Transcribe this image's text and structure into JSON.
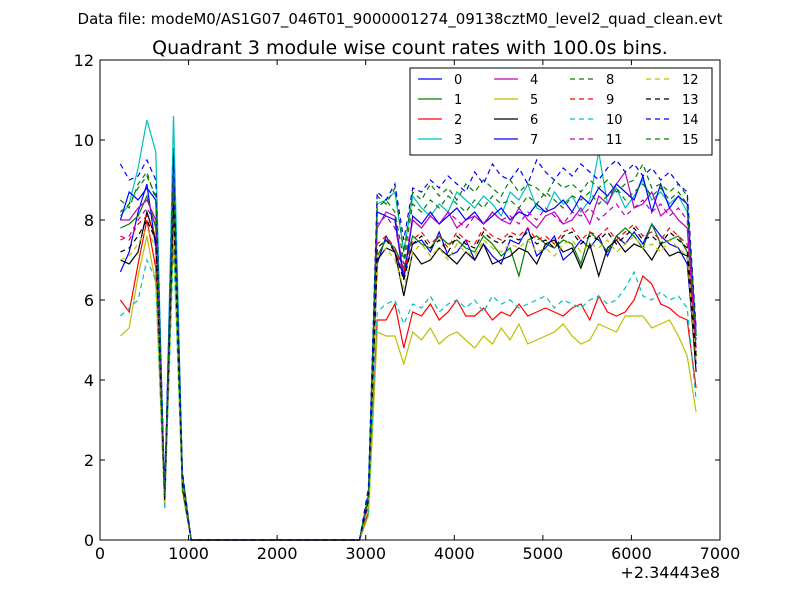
{
  "chart_data": {
    "type": "line",
    "supertitle": "Data file: modeM0/AS1G07_046T01_9000001274_09138cztM0_level2_quad_clean.evt",
    "title": "Quadrant 3 module wise count rates with 100.0s bins.",
    "xlabel": "",
    "ylabel": "",
    "offset_label": "+2.34443e8",
    "xlim": [
      0,
      7000
    ],
    "ylim": [
      0,
      12
    ],
    "xticks": [
      0,
      1000,
      2000,
      3000,
      4000,
      5000,
      6000,
      7000
    ],
    "yticks": [
      0,
      2,
      4,
      6,
      8,
      10,
      12
    ],
    "grid": false,
    "legend_position": "top-right",
    "x": [
      230,
      330,
      430,
      530,
      630,
      730,
      830,
      930,
      1030,
      2930,
      3030,
      3130,
      3230,
      3330,
      3430,
      3530,
      3630,
      3730,
      3830,
      3930,
      4030,
      4130,
      4230,
      4330,
      4430,
      4530,
      4630,
      4730,
      4830,
      4930,
      5030,
      5130,
      5230,
      5330,
      5430,
      5530,
      5630,
      5730,
      5830,
      5930,
      6030,
      6130,
      6230,
      6330,
      6430,
      6530,
      6630,
      6730
    ],
    "series": [
      {
        "name": "0",
        "color": "#0000ff",
        "dash": "",
        "values": [
          6.7,
          7.2,
          8.2,
          8.9,
          7.3,
          1.1,
          9.8,
          1.4,
          0,
          0,
          0.9,
          6.9,
          7.6,
          7.2,
          6.6,
          7.4,
          7.5,
          7.2,
          7.7,
          7.1,
          7.2,
          7.5,
          7.0,
          7.4,
          7.1,
          6.9,
          7.5,
          7.4,
          7.8,
          7.1,
          7.3,
          7.6,
          7.0,
          7.2,
          7.5,
          7.3,
          7.6,
          7.1,
          7.6,
          7.4,
          7.7,
          7.4,
          7.9,
          7.6,
          7.4,
          7.3,
          6.9,
          4.4
        ]
      },
      {
        "name": "1",
        "color": "#008000",
        "dash": "",
        "values": [
          7.8,
          7.9,
          8.1,
          8.6,
          7.8,
          1.0,
          9.0,
          1.5,
          0,
          0,
          0.9,
          7.1,
          7.5,
          7.3,
          6.8,
          7.6,
          7.4,
          7.3,
          7.6,
          7.4,
          7.5,
          7.3,
          7.2,
          7.6,
          7.4,
          7.1,
          7.3,
          6.6,
          7.5,
          7.6,
          7.4,
          7.3,
          7.5,
          7.4,
          6.9,
          7.7,
          7.5,
          7.2,
          7.6,
          7.8,
          7.6,
          7.3,
          7.9,
          7.4,
          7.5,
          7.6,
          7.2,
          4.6
        ]
      },
      {
        "name": "2",
        "color": "#ff0000",
        "dash": "",
        "values": [
          6.0,
          5.7,
          6.9,
          8.0,
          6.8,
          0.9,
          8.2,
          1.3,
          0,
          0,
          0.7,
          5.5,
          5.5,
          5.9,
          4.8,
          5.7,
          5.6,
          5.9,
          5.5,
          5.7,
          6.0,
          5.6,
          5.6,
          5.8,
          5.5,
          5.7,
          5.6,
          5.9,
          5.6,
          5.7,
          5.8,
          5.7,
          5.6,
          5.8,
          5.9,
          5.5,
          6.1,
          5.7,
          5.6,
          5.7,
          6.0,
          6.6,
          6.4,
          5.9,
          5.8,
          5.6,
          5.5,
          3.8
        ]
      },
      {
        "name": "3",
        "color": "#00bfbf",
        "dash": "",
        "values": [
          8.1,
          8.4,
          9.3,
          10.5,
          9.7,
          0.8,
          10.6,
          1.6,
          0,
          0,
          1.1,
          8.4,
          8.5,
          8.7,
          7.2,
          8.6,
          8.3,
          8.1,
          8.4,
          8.2,
          8.7,
          8.5,
          8.3,
          8.6,
          8.4,
          8.1,
          8.7,
          8.5,
          8.9,
          8.3,
          8.2,
          8.7,
          8.4,
          8.6,
          8.2,
          8.5,
          9.7,
          8.4,
          8.8,
          8.3,
          8.6,
          9.0,
          8.5,
          8.7,
          8.4,
          8.6,
          8.2,
          5.2
        ]
      },
      {
        "name": "4",
        "color": "#bf00bf",
        "dash": "",
        "values": [
          8.0,
          8.0,
          8.3,
          8.5,
          8.0,
          1.1,
          9.2,
          1.5,
          0,
          0,
          1.0,
          7.8,
          8.2,
          8.1,
          6.6,
          8.0,
          7.8,
          8.1,
          7.9,
          8.2,
          7.8,
          8.0,
          8.1,
          7.9,
          8.2,
          8.0,
          7.9,
          8.3,
          8.0,
          7.8,
          8.1,
          8.2,
          7.9,
          8.0,
          8.3,
          7.9,
          8.6,
          8.4,
          8.9,
          9.2,
          8.3,
          8.4,
          8.7,
          8.1,
          8.3,
          8.0,
          7.8,
          4.8
        ]
      },
      {
        "name": "5",
        "color": "#bfbf00",
        "dash": "",
        "values": [
          5.1,
          5.3,
          6.6,
          7.6,
          6.4,
          0.9,
          7.6,
          1.2,
          0,
          0,
          0.6,
          5.2,
          5.1,
          5.1,
          4.4,
          5.2,
          5.0,
          5.3,
          4.9,
          5.1,
          5.2,
          5.0,
          4.8,
          5.1,
          4.9,
          5.3,
          5.0,
          5.4,
          4.9,
          5.0,
          5.1,
          5.2,
          5.4,
          5.1,
          4.9,
          5.0,
          5.4,
          5.3,
          5.2,
          5.6,
          5.6,
          5.6,
          5.3,
          5.4,
          5.5,
          5.1,
          4.6,
          3.2
        ]
      },
      {
        "name": "6",
        "color": "#000000",
        "dash": "",
        "values": [
          7.0,
          6.9,
          7.2,
          8.2,
          7.5,
          1.0,
          8.6,
          1.3,
          0,
          0,
          1.0,
          7.0,
          7.3,
          7.2,
          6.1,
          7.2,
          6.9,
          7.0,
          7.3,
          7.1,
          6.9,
          7.2,
          7.0,
          7.4,
          6.9,
          7.0,
          7.1,
          7.3,
          7.2,
          6.9,
          7.4,
          7.5,
          7.2,
          7.3,
          6.8,
          7.4,
          6.6,
          7.3,
          7.5,
          7.2,
          7.4,
          7.3,
          7.0,
          7.4,
          7.1,
          7.2,
          7.1,
          4.2
        ]
      },
      {
        "name": "7",
        "color": "#0000ff",
        "dash": "",
        "values": [
          8.0,
          8.7,
          8.5,
          8.8,
          8.5,
          1.2,
          9.1,
          1.6,
          0,
          0,
          1.1,
          8.2,
          8.1,
          8.0,
          6.5,
          8.1,
          7.9,
          8.2,
          7.9,
          8.1,
          8.3,
          8.0,
          8.2,
          7.9,
          8.1,
          8.3,
          8.0,
          8.2,
          8.1,
          8.4,
          8.2,
          8.3,
          8.5,
          8.2,
          8.6,
          8.4,
          8.8,
          8.6,
          8.9,
          8.7,
          8.5,
          9.1,
          8.2,
          8.9,
          8.3,
          8.6,
          8.4,
          5.1
        ]
      },
      {
        "name": "8",
        "color": "#008000",
        "dash": "5,4",
        "values": [
          8.5,
          8.3,
          8.9,
          9.2,
          8.5,
          1.1,
          9.1,
          1.7,
          0,
          0,
          1.2,
          8.6,
          8.4,
          8.8,
          7.2,
          8.7,
          8.5,
          8.9,
          8.6,
          8.8,
          8.5,
          8.9,
          8.7,
          9.0,
          8.8,
          8.6,
          9.0,
          8.7,
          8.9,
          8.8,
          8.6,
          9.0,
          8.8,
          8.9,
          8.7,
          9.0,
          8.8,
          9.0,
          8.7,
          8.9,
          9.0,
          9.4,
          8.8,
          8.9,
          8.7,
          8.9,
          8.6,
          5.2
        ]
      },
      {
        "name": "9",
        "color": "#ff0000",
        "dash": "5,4",
        "values": [
          7.6,
          7.5,
          7.9,
          8.1,
          7.6,
          1.0,
          8.5,
          1.5,
          0,
          0,
          0.9,
          7.4,
          7.6,
          7.3,
          6.7,
          7.5,
          7.7,
          7.4,
          7.6,
          7.3,
          7.7,
          7.5,
          7.4,
          7.8,
          7.6,
          7.5,
          7.7,
          7.6,
          7.8,
          7.5,
          7.6,
          7.4,
          7.7,
          7.8,
          7.5,
          7.7,
          7.6,
          7.8,
          7.5,
          7.7,
          7.9,
          7.6,
          7.7,
          7.5,
          7.8,
          7.6,
          7.4,
          4.7
        ]
      },
      {
        "name": "10",
        "color": "#00bfbf",
        "dash": "5,4",
        "values": [
          5.6,
          5.8,
          6.0,
          7.0,
          6.5,
          0.8,
          7.4,
          1.3,
          0,
          0,
          0.7,
          5.7,
          5.9,
          6.0,
          5.4,
          5.9,
          5.8,
          6.1,
          5.7,
          5.9,
          6.0,
          5.8,
          6.0,
          5.7,
          6.1,
          5.9,
          6.0,
          5.8,
          5.9,
          6.0,
          6.1,
          5.8,
          6.0,
          5.9,
          5.8,
          6.0,
          6.1,
          5.9,
          6.0,
          6.3,
          6.7,
          6.1,
          6.0,
          6.2,
          6.0,
          6.1,
          5.8,
          3.5
        ]
      },
      {
        "name": "11",
        "color": "#bf00bf",
        "dash": "5,4",
        "values": [
          7.5,
          7.6,
          8.0,
          8.3,
          7.9,
          1.0,
          8.8,
          1.5,
          0,
          0,
          1.0,
          7.9,
          8.1,
          7.8,
          6.9,
          8.0,
          7.8,
          8.1,
          7.9,
          8.2,
          8.0,
          7.8,
          8.1,
          7.9,
          8.2,
          8.0,
          8.1,
          7.9,
          8.2,
          8.0,
          8.3,
          8.1,
          7.9,
          8.2,
          8.1,
          8.3,
          8.0,
          8.2,
          8.4,
          8.1,
          8.3,
          8.5,
          8.2,
          8.4,
          8.1,
          8.3,
          8.0,
          5.0
        ]
      },
      {
        "name": "12",
        "color": "#bfbf00",
        "dash": "5,4",
        "values": [
          7.0,
          7.1,
          7.4,
          7.8,
          7.3,
          0.9,
          8.1,
          1.4,
          0,
          0,
          0.9,
          7.1,
          7.3,
          7.0,
          6.3,
          7.2,
          7.4,
          7.1,
          7.3,
          7.0,
          7.4,
          7.2,
          7.1,
          7.5,
          7.3,
          7.2,
          7.4,
          7.3,
          7.5,
          7.2,
          7.3,
          7.1,
          7.4,
          7.5,
          7.2,
          7.4,
          7.3,
          7.5,
          7.2,
          7.4,
          7.6,
          7.3,
          7.4,
          7.2,
          7.5,
          7.3,
          7.1,
          4.5
        ]
      },
      {
        "name": "13",
        "color": "#000000",
        "dash": "5,4",
        "values": [
          7.2,
          7.3,
          7.6,
          8.0,
          7.5,
          1.0,
          8.4,
          1.4,
          0,
          0,
          1.0,
          7.3,
          7.5,
          7.2,
          6.5,
          7.4,
          7.6,
          7.3,
          7.5,
          7.2,
          7.6,
          7.4,
          7.3,
          7.7,
          7.5,
          7.4,
          7.6,
          7.5,
          7.7,
          7.4,
          7.5,
          7.3,
          7.6,
          7.7,
          7.4,
          7.6,
          7.5,
          7.7,
          7.4,
          7.6,
          7.8,
          7.5,
          7.6,
          7.4,
          7.7,
          7.5,
          7.3,
          4.6
        ]
      },
      {
        "name": "14",
        "color": "#0000ff",
        "dash": "5,4",
        "values": [
          9.4,
          9.0,
          9.1,
          9.5,
          9.0,
          1.2,
          9.6,
          1.7,
          0,
          0,
          1.3,
          8.7,
          8.5,
          8.9,
          7.5,
          8.8,
          8.7,
          9.0,
          8.8,
          9.1,
          8.9,
          8.7,
          9.2,
          8.9,
          9.4,
          9.1,
          9.0,
          9.3,
          8.9,
          9.5,
          9.2,
          9.0,
          9.3,
          9.1,
          9.4,
          9.2,
          9.0,
          9.3,
          9.5,
          9.2,
          9.4,
          9.1,
          9.3,
          9.0,
          9.2,
          8.9,
          8.7,
          5.3
        ]
      },
      {
        "name": "15",
        "color": "#008000",
        "dash": "5,4",
        "values": [
          8.2,
          8.4,
          8.8,
          9.1,
          8.6,
          1.1,
          9.2,
          1.6,
          0,
          0,
          1.1,
          8.3,
          8.5,
          8.2,
          7.0,
          8.4,
          8.2,
          8.5,
          8.3,
          8.6,
          8.4,
          8.2,
          8.5,
          8.3,
          8.6,
          8.4,
          8.5,
          8.3,
          8.6,
          8.4,
          8.7,
          8.5,
          8.3,
          8.6,
          8.5,
          8.7,
          8.4,
          8.6,
          8.8,
          8.5,
          8.7,
          8.9,
          8.6,
          8.8,
          8.5,
          8.7,
          8.4,
          5.1
        ]
      }
    ]
  }
}
